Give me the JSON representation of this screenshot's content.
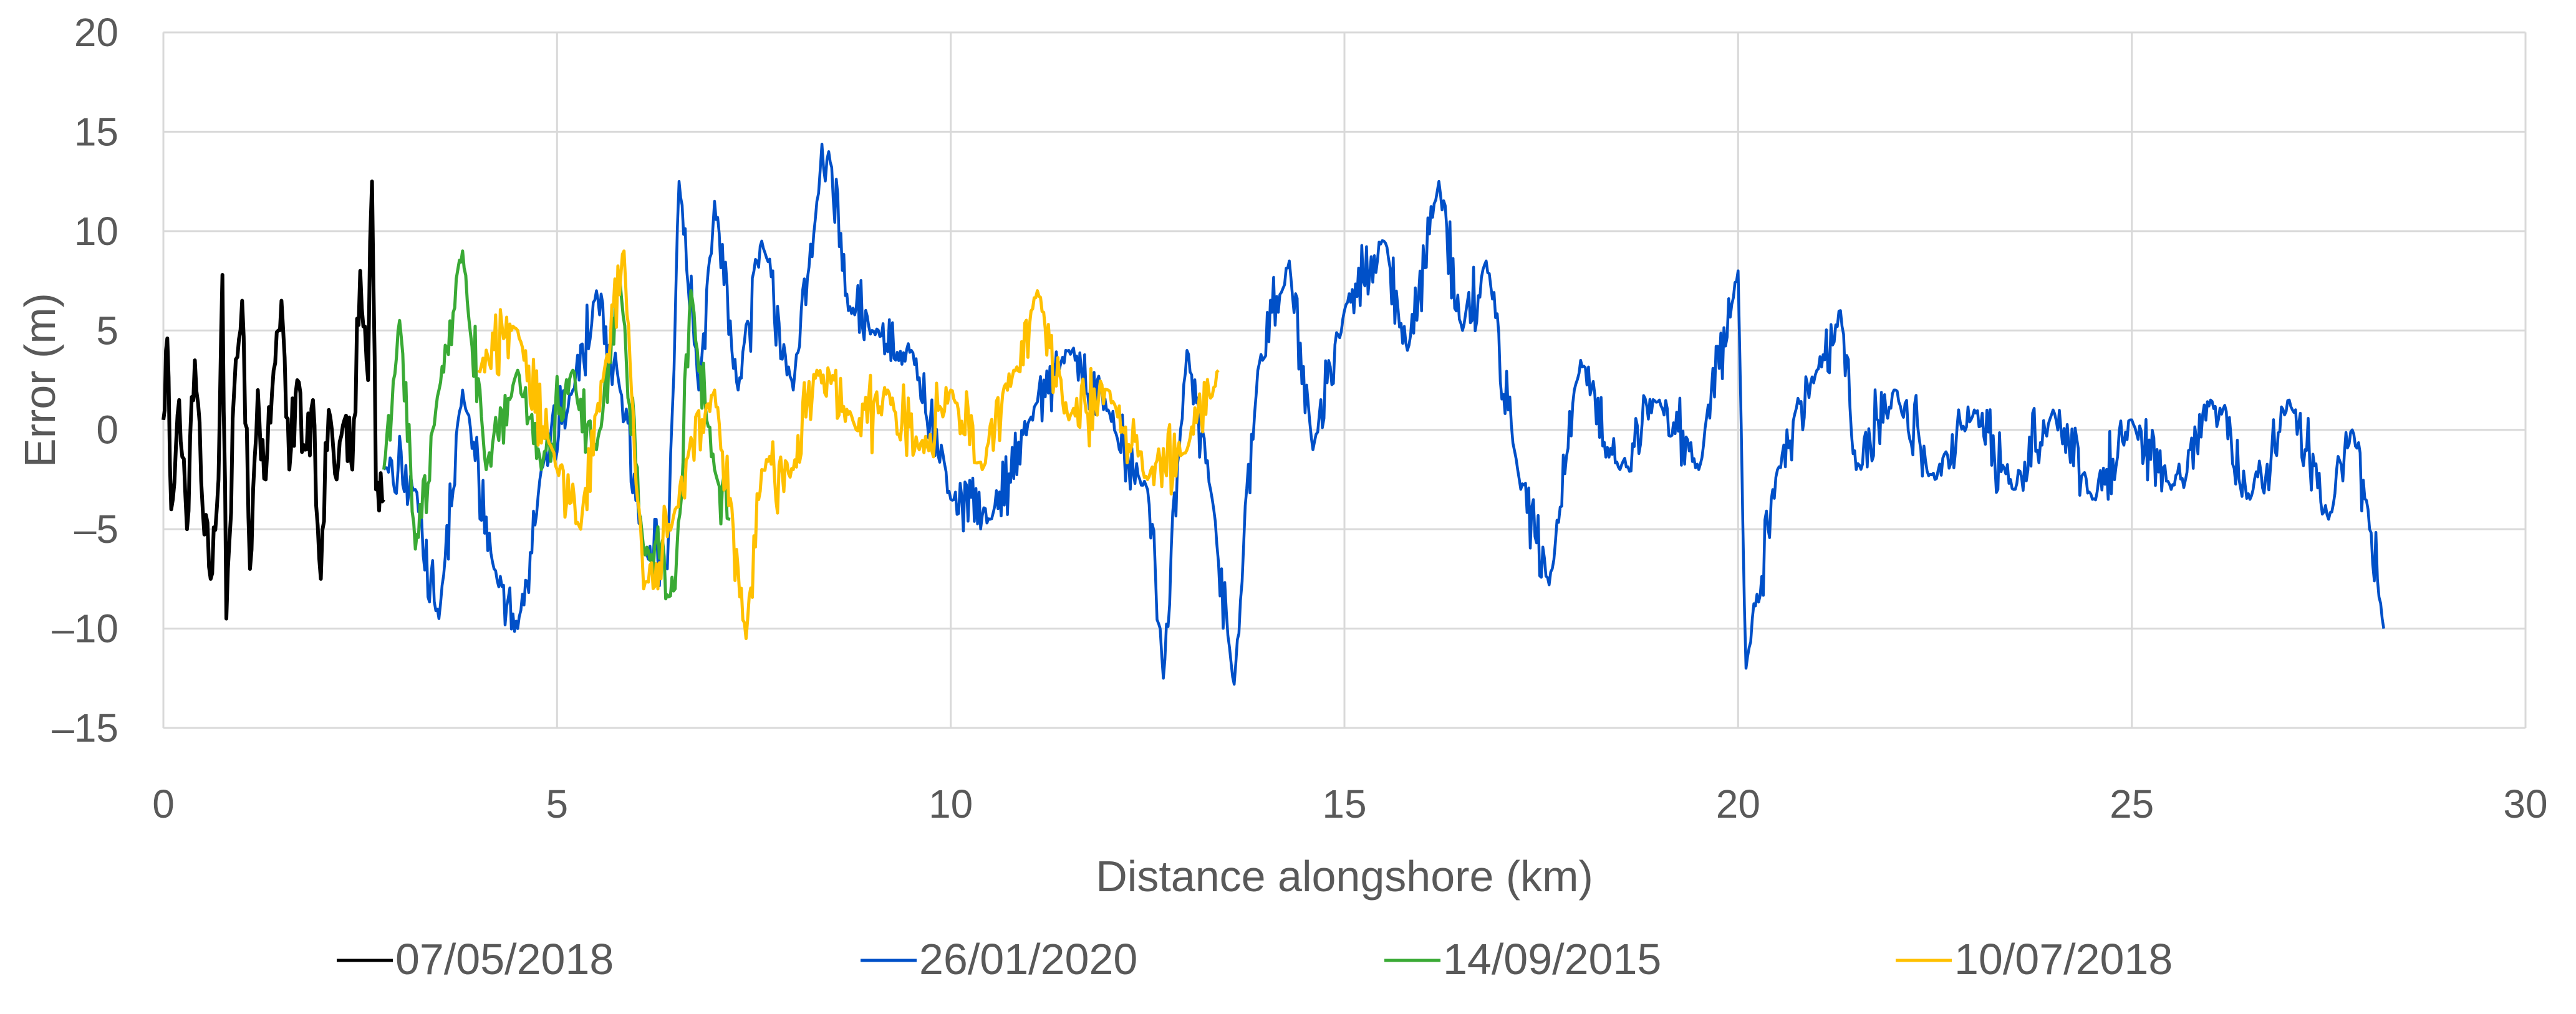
{
  "chart_data": {
    "type": "line",
    "title": "",
    "xlabel": "Distance alongshore (km)",
    "ylabel": "Error (m)",
    "xlim": [
      0,
      30
    ],
    "ylim": [
      -15,
      20
    ],
    "xticks": [
      0,
      5,
      10,
      15,
      20,
      25,
      30
    ],
    "yticks": [
      -15,
      -10,
      -5,
      0,
      5,
      10,
      15,
      20
    ],
    "grid": true,
    "legend_position": "bottom",
    "series": [
      {
        "name": "07/05/2018",
        "color": "#000000",
        "x_range": [
          0,
          2.8
        ],
        "keypoints": [
          [
            0.0,
            0.5
          ],
          [
            0.05,
            4.6
          ],
          [
            0.1,
            -4.0
          ],
          [
            0.2,
            1.5
          ],
          [
            0.3,
            -5.0
          ],
          [
            0.4,
            3.5
          ],
          [
            0.5,
            -4.0
          ],
          [
            0.6,
            -7.5
          ],
          [
            0.7,
            -2.5
          ],
          [
            0.75,
            7.8
          ],
          [
            0.8,
            -9.5
          ],
          [
            0.9,
            2.0
          ],
          [
            1.0,
            6.5
          ],
          [
            1.1,
            -7.0
          ],
          [
            1.2,
            2.0
          ],
          [
            1.3,
            -2.5
          ],
          [
            1.4,
            3.0
          ],
          [
            1.5,
            6.5
          ],
          [
            1.6,
            -2.0
          ],
          [
            1.7,
            2.5
          ],
          [
            1.8,
            -1.0
          ],
          [
            1.9,
            1.5
          ],
          [
            2.0,
            -7.5
          ],
          [
            2.1,
            1.0
          ],
          [
            2.2,
            -2.5
          ],
          [
            2.3,
            0.5
          ],
          [
            2.4,
            -2.0
          ],
          [
            2.5,
            8.0
          ],
          [
            2.6,
            2.5
          ],
          [
            2.65,
            12.5
          ],
          [
            2.7,
            -3.0
          ],
          [
            2.8,
            -3.5
          ]
        ]
      },
      {
        "name": "26/01/2020",
        "color": "#0050c8",
        "x_range": [
          2.8,
          28.2
        ],
        "keypoints": [
          [
            2.8,
            -2.0
          ],
          [
            3.2,
            -3.0
          ],
          [
            3.5,
            -9.5
          ],
          [
            3.8,
            2.0
          ],
          [
            4.2,
            -7.0
          ],
          [
            4.5,
            -10.0
          ],
          [
            4.8,
            -2.0
          ],
          [
            5.2,
            2.0
          ],
          [
            5.5,
            7.0
          ],
          [
            5.8,
            2.0
          ],
          [
            6.1,
            -6.0
          ],
          [
            6.4,
            -7.0
          ],
          [
            6.55,
            12.5
          ],
          [
            6.8,
            2.0
          ],
          [
            7.0,
            11.5
          ],
          [
            7.3,
            2.0
          ],
          [
            7.6,
            9.5
          ],
          [
            8.0,
            2.0
          ],
          [
            8.3,
            11.5
          ],
          [
            8.45,
            14.0
          ],
          [
            8.7,
            6.0
          ],
          [
            9.0,
            5.0
          ],
          [
            9.5,
            4.0
          ],
          [
            10.0,
            -3.5
          ],
          [
            10.5,
            -4.5
          ],
          [
            11.0,
            0.5
          ],
          [
            11.5,
            4.0
          ],
          [
            12.0,
            1.0
          ],
          [
            12.5,
            -3.0
          ],
          [
            12.7,
            -12.5
          ],
          [
            13.0,
            4.0
          ],
          [
            13.3,
            -3.0
          ],
          [
            13.6,
            -12.8
          ],
          [
            13.9,
            3.0
          ],
          [
            14.3,
            8.5
          ],
          [
            14.6,
            -1.0
          ],
          [
            15.0,
            6.0
          ],
          [
            15.5,
            9.5
          ],
          [
            15.8,
            4.0
          ],
          [
            16.2,
            12.5
          ],
          [
            16.5,
            5.0
          ],
          [
            16.8,
            8.5
          ],
          [
            17.2,
            -2.0
          ],
          [
            17.6,
            -7.8
          ],
          [
            18.0,
            3.5
          ],
          [
            18.5,
            -2.0
          ],
          [
            19.0,
            1.5
          ],
          [
            19.5,
            -2.0
          ],
          [
            20.0,
            8.0
          ],
          [
            20.1,
            -12.0
          ],
          [
            20.5,
            -2.0
          ],
          [
            21.0,
            3.0
          ],
          [
            21.3,
            6.0
          ],
          [
            21.5,
            -2.0
          ],
          [
            22.0,
            2.0
          ],
          [
            22.5,
            -2.5
          ],
          [
            23.0,
            1.0
          ],
          [
            23.5,
            -3.0
          ],
          [
            24.0,
            1.0
          ],
          [
            24.5,
            -3.5
          ],
          [
            25.0,
            0.5
          ],
          [
            25.5,
            -3.0
          ],
          [
            26.0,
            1.5
          ],
          [
            26.5,
            -3.5
          ],
          [
            27.0,
            1.5
          ],
          [
            27.5,
            -4.5
          ],
          [
            27.8,
            0.0
          ],
          [
            28.0,
            -4.0
          ],
          [
            28.2,
            -10.0
          ]
        ]
      },
      {
        "name": "14/09/2015",
        "color": "#3aaa35",
        "x_range": [
          2.8,
          7.2
        ],
        "keypoints": [
          [
            2.8,
            -2.0
          ],
          [
            3.0,
            5.5
          ],
          [
            3.2,
            -6.0
          ],
          [
            3.5,
            2.0
          ],
          [
            3.8,
            9.0
          ],
          [
            4.1,
            -2.0
          ],
          [
            4.5,
            3.0
          ],
          [
            4.8,
            -2.0
          ],
          [
            5.2,
            3.0
          ],
          [
            5.5,
            -1.0
          ],
          [
            5.8,
            7.5
          ],
          [
            6.1,
            -6.0
          ],
          [
            6.5,
            -8.0
          ],
          [
            6.7,
            7.0
          ],
          [
            7.0,
            -2.0
          ],
          [
            7.2,
            -4.5
          ]
        ]
      },
      {
        "name": "10/07/2018",
        "color": "#ffc000",
        "x_range": [
          4.0,
          13.4
        ],
        "keypoints": [
          [
            4.0,
            3.0
          ],
          [
            4.5,
            5.0
          ],
          [
            5.0,
            -2.0
          ],
          [
            5.3,
            -5.0
          ],
          [
            5.6,
            3.0
          ],
          [
            5.85,
            9.0
          ],
          [
            6.1,
            -8.0
          ],
          [
            6.5,
            -4.0
          ],
          [
            7.0,
            2.0
          ],
          [
            7.4,
            -10.5
          ],
          [
            7.6,
            -2.0
          ],
          [
            8.0,
            -2.0
          ],
          [
            8.3,
            3.0
          ],
          [
            8.8,
            0.0
          ],
          [
            9.2,
            2.0
          ],
          [
            9.6,
            -1.0
          ],
          [
            10.0,
            2.0
          ],
          [
            10.4,
            -2.0
          ],
          [
            10.8,
            3.0
          ],
          [
            11.1,
            7.0
          ],
          [
            11.5,
            0.5
          ],
          [
            12.0,
            2.0
          ],
          [
            12.5,
            -2.5
          ],
          [
            13.0,
            -1.0
          ],
          [
            13.4,
            3.0
          ]
        ]
      }
    ]
  }
}
